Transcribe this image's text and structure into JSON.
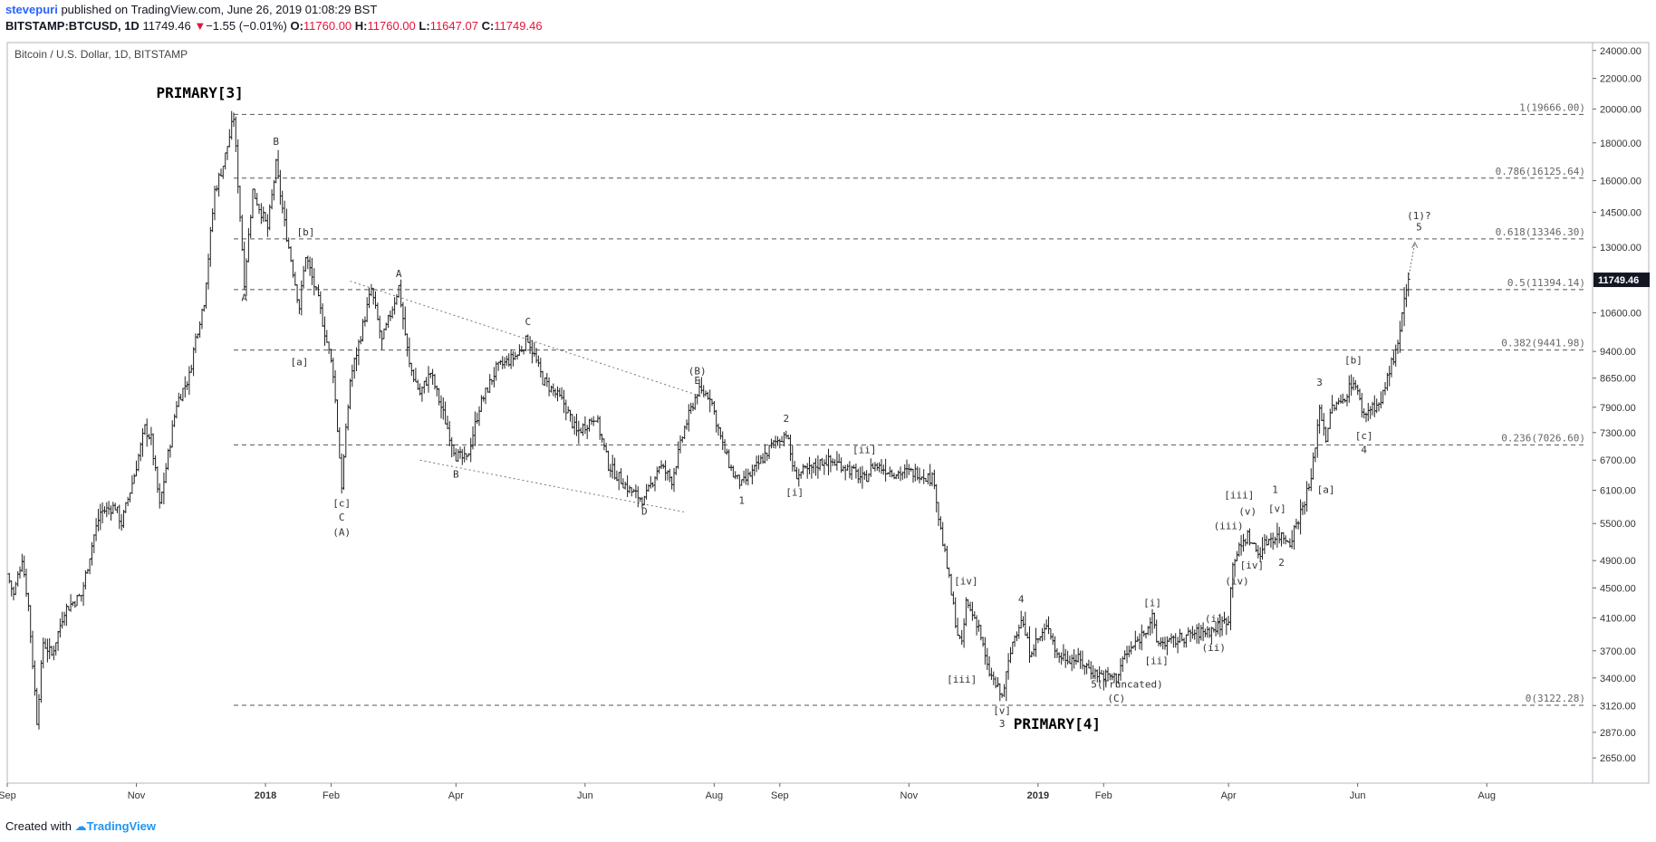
{
  "header": {
    "author": "stevepuri",
    "published_text": "published on TradingView.com, June 26, 2019 01:08:29 BST",
    "symbol_line": "BITSTAMP:BTCUSD, 1D",
    "last": "11749.46",
    "change_arrow": "▼",
    "change": "−1.55 (−0.01%)",
    "o_label": "O:",
    "o_value": "11760.00",
    "h_label": "H:",
    "h_value": "11760.00",
    "l_label": "L:",
    "l_value": "11647.07",
    "c_label": "C:",
    "c_value": "11749.46"
  },
  "footer": {
    "created_with": "Created with",
    "brand": "TradingView"
  },
  "colors": {
    "down": "#e4143a",
    "author": "#2962ff",
    "brand": "#2196f3",
    "bars": "#222222",
    "grid": "#555555"
  },
  "chart_data": {
    "type": "ohlc_bar",
    "title": "Bitcoin / U.S. Dollar, 1D, BITSTAMP",
    "xlabel": "",
    "ylabel": "",
    "y_scale": "log",
    "ylim": [
      2450,
      24600
    ],
    "xlim": [
      "2017-09-01",
      "2019-09-20"
    ],
    "grid": false,
    "x_ticks": [
      {
        "date": "2017-09-01",
        "label": "Sep"
      },
      {
        "date": "2017-11-01",
        "label": "Nov"
      },
      {
        "date": "2018-01-01",
        "label": "2018"
      },
      {
        "date": "2018-02-01",
        "label": "Feb"
      },
      {
        "date": "2018-04-01",
        "label": "Apr"
      },
      {
        "date": "2018-06-01",
        "label": "Jun"
      },
      {
        "date": "2018-08-01",
        "label": "Aug"
      },
      {
        "date": "2018-09-01",
        "label": "Sep"
      },
      {
        "date": "2018-11-01",
        "label": "Nov"
      },
      {
        "date": "2019-01-01",
        "label": "2019"
      },
      {
        "date": "2019-02-01",
        "label": "Feb"
      },
      {
        "date": "2019-04-01",
        "label": "Apr"
      },
      {
        "date": "2019-06-01",
        "label": "Jun"
      },
      {
        "date": "2019-08-01",
        "label": "Aug"
      }
    ],
    "y_ticks": [
      {
        "value": 24000,
        "label": "24000.00"
      },
      {
        "value": 22000,
        "label": "22000.00"
      },
      {
        "value": 20000,
        "label": "20000.00"
      },
      {
        "value": 18000,
        "label": "18000.00"
      },
      {
        "value": 16000,
        "label": "16000.00"
      },
      {
        "value": 14500,
        "label": "14500.00"
      },
      {
        "value": 13000,
        "label": "13000.00"
      },
      {
        "value": 11749.46,
        "label": "11749.46",
        "highlight": true
      },
      {
        "value": 10600,
        "label": "10600.00"
      },
      {
        "value": 9400,
        "label": "9400.00"
      },
      {
        "value": 8650,
        "label": "8650.00"
      },
      {
        "value": 7900,
        "label": "7900.00"
      },
      {
        "value": 7300,
        "label": "7300.00"
      },
      {
        "value": 6700,
        "label": "6700.00"
      },
      {
        "value": 6100,
        "label": "6100.00"
      },
      {
        "value": 5500,
        "label": "5500.00"
      },
      {
        "value": 4900,
        "label": "4900.00"
      },
      {
        "value": 4500,
        "label": "4500.00"
      },
      {
        "value": 4100,
        "label": "4100.00"
      },
      {
        "value": 3700,
        "label": "3700.00"
      },
      {
        "value": 3400,
        "label": "3400.00"
      },
      {
        "value": 3120,
        "label": "3120.00"
      },
      {
        "value": 2870,
        "label": "2870.00"
      },
      {
        "value": 2650,
        "label": "2650.00"
      }
    ],
    "fib_levels": [
      {
        "price": 19666.0,
        "label": "1(19666.00)"
      },
      {
        "price": 16125.64,
        "label": "0.786(16125.64)"
      },
      {
        "price": 13346.3,
        "label": "0.618(13346.30)"
      },
      {
        "price": 11394.14,
        "label": "0.5(11394.14)"
      },
      {
        "price": 9441.98,
        "label": "0.382(9441.98)"
      },
      {
        "price": 7026.6,
        "label": "0.236(7026.60)"
      },
      {
        "price": 3122.28,
        "label": "0(3122.28)"
      }
    ],
    "fib_start_date": "2017-12-17",
    "price_anchors": [
      [
        "2017-09-01",
        4700
      ],
      [
        "2017-09-04",
        4400
      ],
      [
        "2017-09-08",
        4950
      ],
      [
        "2017-09-11",
        4250
      ],
      [
        "2017-09-15",
        2980
      ],
      [
        "2017-09-18",
        3800
      ],
      [
        "2017-09-22",
        3650
      ],
      [
        "2017-09-28",
        4200
      ],
      [
        "2017-10-06",
        4400
      ],
      [
        "2017-10-12",
        5300
      ],
      [
        "2017-10-15",
        5700
      ],
      [
        "2017-10-22",
        5800
      ],
      [
        "2017-10-25",
        5500
      ],
      [
        "2017-10-31",
        6400
      ],
      [
        "2017-11-05",
        7400
      ],
      [
        "2017-11-08",
        7150
      ],
      [
        "2017-11-12",
        5800
      ],
      [
        "2017-11-20",
        8000
      ],
      [
        "2017-11-26",
        8700
      ],
      [
        "2017-11-29",
        9800
      ],
      [
        "2017-12-03",
        11000
      ],
      [
        "2017-12-08",
        15500
      ],
      [
        "2017-12-12",
        16800
      ],
      [
        "2017-12-17",
        19500
      ],
      [
        "2017-12-22",
        11700
      ],
      [
        "2017-12-26",
        15500
      ],
      [
        "2018-01-02",
        13800
      ],
      [
        "2018-01-06",
        16800
      ],
      [
        "2018-01-10",
        14000
      ],
      [
        "2018-01-17",
        10800
      ],
      [
        "2018-01-20",
        12700
      ],
      [
        "2018-01-26",
        11000
      ],
      [
        "2018-02-02",
        8800
      ],
      [
        "2018-02-06",
        6200
      ],
      [
        "2018-02-10",
        8600
      ],
      [
        "2018-02-20",
        11400
      ],
      [
        "2018-02-25",
        9700
      ],
      [
        "2018-03-05",
        11500
      ],
      [
        "2018-03-10",
        9000
      ],
      [
        "2018-03-15",
        8250
      ],
      [
        "2018-03-20",
        8800
      ],
      [
        "2018-04-01",
        6800
      ],
      [
        "2018-04-06",
        6700
      ],
      [
        "2018-04-12",
        7900
      ],
      [
        "2018-04-20",
        8900
      ],
      [
        "2018-04-30",
        9300
      ],
      [
        "2018-05-05",
        9800
      ],
      [
        "2018-05-12",
        8600
      ],
      [
        "2018-05-22",
        8000
      ],
      [
        "2018-05-28",
        7300
      ],
      [
        "2018-06-06",
        7700
      ],
      [
        "2018-06-12",
        6600
      ],
      [
        "2018-06-22",
        6100
      ],
      [
        "2018-06-29",
        5900
      ],
      [
        "2018-07-06",
        6600
      ],
      [
        "2018-07-12",
        6300
      ],
      [
        "2018-07-18",
        7400
      ],
      [
        "2018-07-24",
        8300
      ],
      [
        "2018-07-30",
        8200
      ],
      [
        "2018-08-05",
        7000
      ],
      [
        "2018-08-10",
        6400
      ],
      [
        "2018-08-14",
        6200
      ],
      [
        "2018-08-20",
        6500
      ],
      [
        "2018-08-28",
        7000
      ],
      [
        "2018-09-04",
        7300
      ],
      [
        "2018-09-08",
        6400
      ],
      [
        "2018-09-15",
        6500
      ],
      [
        "2018-09-22",
        6700
      ],
      [
        "2018-10-01",
        6600
      ],
      [
        "2018-10-11",
        6300
      ],
      [
        "2018-10-15",
        6600
      ],
      [
        "2018-10-25",
        6450
      ],
      [
        "2018-11-05",
        6450
      ],
      [
        "2018-11-13",
        6300
      ],
      [
        "2018-11-15",
        5600
      ],
      [
        "2018-11-19",
        4800
      ],
      [
        "2018-11-24",
        3900
      ],
      [
        "2018-11-26",
        3750
      ],
      [
        "2018-11-28",
        4300
      ],
      [
        "2018-12-04",
        4000
      ],
      [
        "2018-12-08",
        3500
      ],
      [
        "2018-12-15",
        3200
      ],
      [
        "2018-12-20",
        3800
      ],
      [
        "2018-12-24",
        4100
      ],
      [
        "2018-12-28",
        3700
      ],
      [
        "2019-01-06",
        4000
      ],
      [
        "2019-01-10",
        3650
      ],
      [
        "2019-01-20",
        3600
      ],
      [
        "2019-01-28",
        3450
      ],
      [
        "2019-02-07",
        3400
      ],
      [
        "2019-02-10",
        3600
      ],
      [
        "2019-02-18",
        3850
      ],
      [
        "2019-02-24",
        4100
      ],
      [
        "2019-02-26",
        3800
      ],
      [
        "2019-03-05",
        3800
      ],
      [
        "2019-03-15",
        3900
      ],
      [
        "2019-03-25",
        3950
      ],
      [
        "2019-04-01",
        4100
      ],
      [
        "2019-04-03",
        4900
      ],
      [
        "2019-04-10",
        5300
      ],
      [
        "2019-04-15",
        5000
      ],
      [
        "2019-04-20",
        5250
      ],
      [
        "2019-04-26",
        5300
      ],
      [
        "2019-04-30",
        5200
      ],
      [
        "2019-05-05",
        5700
      ],
      [
        "2019-05-10",
        6300
      ],
      [
        "2019-05-14",
        7900
      ],
      [
        "2019-05-17",
        7200
      ],
      [
        "2019-05-20",
        7900
      ],
      [
        "2019-05-24",
        8000
      ],
      [
        "2019-05-30",
        8600
      ],
      [
        "2019-06-04",
        7700
      ],
      [
        "2019-06-07",
        7900
      ],
      [
        "2019-06-12",
        8000
      ],
      [
        "2019-06-16",
        8900
      ],
      [
        "2019-06-20",
        9500
      ],
      [
        "2019-06-22",
        10500
      ],
      [
        "2019-06-25",
        11749
      ]
    ],
    "trend_lines": [
      {
        "from": [
          "2018-02-10",
          11700
        ],
        "to": [
          "2018-07-30",
          8100
        ]
      },
      {
        "from": [
          "2018-03-15",
          6700
        ],
        "to": [
          "2018-07-18",
          5700
        ]
      }
    ],
    "projection": {
      "from": [
        "2019-06-25",
        11800
      ],
      "to": [
        "2019-06-28",
        13200
      ]
    },
    "annotations": [
      {
        "text": "PRIMARY[3]",
        "date": "2017-12-01",
        "price": 20700,
        "style": "big"
      },
      {
        "text": "PRIMARY[4]",
        "date": "2019-01-10",
        "price": 2900,
        "style": "big"
      },
      {
        "text": "B",
        "date": "2018-01-06",
        "price": 17900
      },
      {
        "text": "A",
        "date": "2017-12-22",
        "price": 11000
      },
      {
        "text": "[b]",
        "date": "2018-01-20",
        "price": 13500
      },
      {
        "text": "[a]",
        "date": "2018-01-17",
        "price": 9000
      },
      {
        "text": "[c]",
        "date": "2018-02-06",
        "price": 5800
      },
      {
        "text": "C",
        "date": "2018-02-06",
        "price": 5550
      },
      {
        "text": "(A)",
        "date": "2018-02-06",
        "price": 5300
      },
      {
        "text": "A",
        "date": "2018-03-05",
        "price": 11850
      },
      {
        "text": "B",
        "date": "2018-04-01",
        "price": 6350
      },
      {
        "text": "C",
        "date": "2018-05-05",
        "price": 10200
      },
      {
        "text": "D",
        "date": "2018-06-29",
        "price": 5650
      },
      {
        "text": "(B)",
        "date": "2018-07-24",
        "price": 8750
      },
      {
        "text": "E",
        "date": "2018-07-24",
        "price": 8500
      },
      {
        "text": "1",
        "date": "2018-08-14",
        "price": 5850
      },
      {
        "text": "2",
        "date": "2018-09-04",
        "price": 7550
      },
      {
        "text": "[ii]",
        "date": "2018-10-11",
        "price": 6850
      },
      {
        "text": "[i]",
        "date": "2018-09-08",
        "price": 6000
      },
      {
        "text": "[iv]",
        "date": "2018-11-28",
        "price": 4550
      },
      {
        "text": "[iii]",
        "date": "2018-11-26",
        "price": 3350
      },
      {
        "text": "4",
        "date": "2018-12-24",
        "price": 4300
      },
      {
        "text": "[v]",
        "date": "2018-12-15",
        "price": 3040
      },
      {
        "text": "3",
        "date": "2018-12-15",
        "price": 2920
      },
      {
        "text": "5(Truncated)",
        "date": "2019-02-12",
        "price": 3300
      },
      {
        "text": "(C)",
        "date": "2019-02-07",
        "price": 3160
      },
      {
        "text": "[i]",
        "date": "2019-02-24",
        "price": 4250
      },
      {
        "text": "[ii]",
        "date": "2019-02-26",
        "price": 3550
      },
      {
        "text": "(i)",
        "date": "2019-03-25",
        "price": 4050
      },
      {
        "text": "(ii)",
        "date": "2019-03-25",
        "price": 3700
      },
      {
        "text": "(iii)",
        "date": "2019-04-01",
        "price": 5400
      },
      {
        "text": "[iii]",
        "date": "2019-04-06",
        "price": 5950
      },
      {
        "text": "(v)",
        "date": "2019-04-10",
        "price": 5650
      },
      {
        "text": "[iv]",
        "date": "2019-04-12",
        "price": 4780
      },
      {
        "text": "(iv)",
        "date": "2019-04-05",
        "price": 4550
      },
      {
        "text": "1",
        "date": "2019-04-23",
        "price": 6050
      },
      {
        "text": "[v]",
        "date": "2019-04-24",
        "price": 5700
      },
      {
        "text": "2",
        "date": "2019-04-26",
        "price": 4820
      },
      {
        "text": "3",
        "date": "2019-05-14",
        "price": 8450
      },
      {
        "text": "[a]",
        "date": "2019-05-17",
        "price": 6050
      },
      {
        "text": "[b]",
        "date": "2019-05-30",
        "price": 9050
      },
      {
        "text": "[c]",
        "date": "2019-06-04",
        "price": 7150
      },
      {
        "text": "4",
        "date": "2019-06-04",
        "price": 6850
      },
      {
        "text": "(1)?",
        "date": "2019-06-30",
        "price": 14200
      },
      {
        "text": "5",
        "date": "2019-06-30",
        "price": 13700
      }
    ]
  }
}
